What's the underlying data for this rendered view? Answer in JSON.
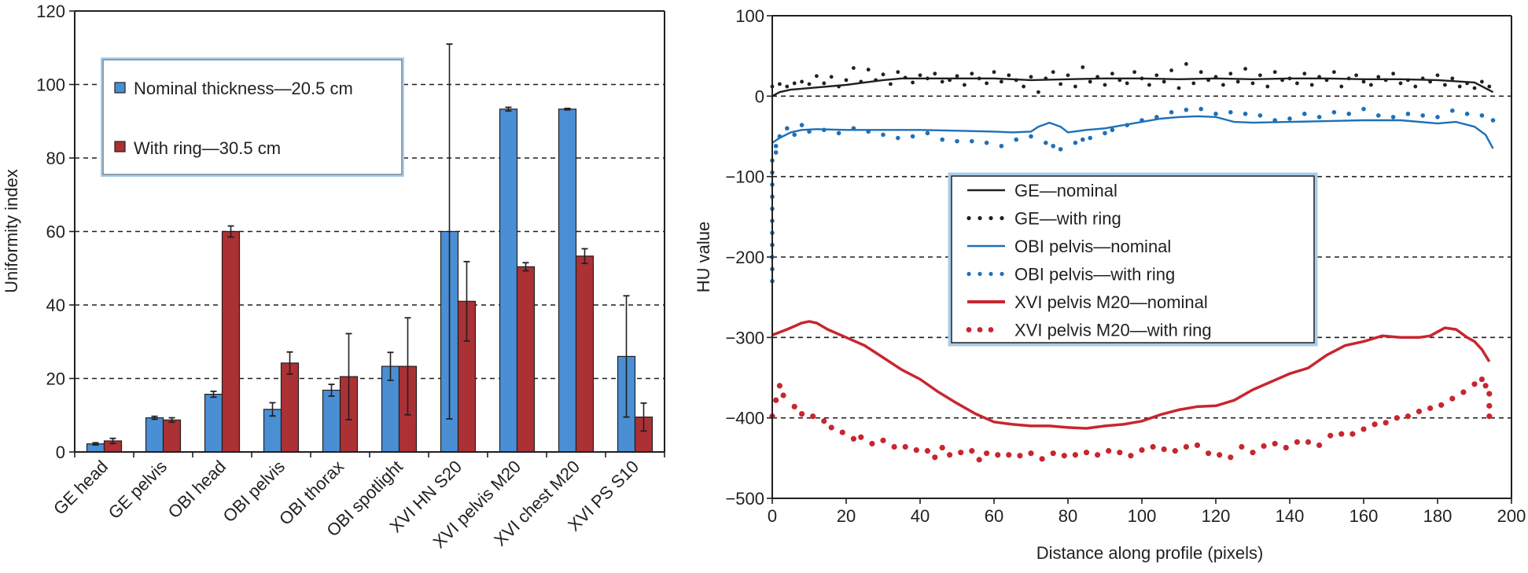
{
  "chart_data": [
    {
      "type": "bar",
      "title": "",
      "xlabel": "",
      "ylabel": "Uniformity index",
      "ylim": [
        0,
        120
      ],
      "yticks": [
        "0",
        "20",
        "40",
        "60",
        "80",
        "100",
        "120"
      ],
      "grid": "dashed horizontal",
      "legend_position": "top-left",
      "categories": [
        "GE head",
        "GE pelvis",
        "OBI head",
        "OBI pelvis",
        "OBI thorax",
        "OBI spotlight",
        "XVI HN S20",
        "XVI pelvis M20",
        "XVI chest M20",
        "XVI PS S10"
      ],
      "series": [
        {
          "name": "Nominal thickness—20.5 cm",
          "color": "#4a8fd4",
          "values": [
            2.2,
            9.3,
            15.7,
            11.6,
            16.8,
            23.3,
            60.0,
            93.3,
            93.3,
            26.0
          ],
          "error": [
            0.3,
            0.4,
            0.8,
            1.8,
            1.6,
            3.8,
            51.0,
            0.5,
            0.2,
            16.5
          ]
        },
        {
          "name": "With ring—30.5 cm",
          "color": "#ab3135",
          "values": [
            3.0,
            8.7,
            60.0,
            24.2,
            20.5,
            23.3,
            41.0,
            50.4,
            53.3,
            9.5
          ],
          "error": [
            0.7,
            0.6,
            1.5,
            3.0,
            11.7,
            13.2,
            10.8,
            1.1,
            2.0,
            3.8
          ]
        }
      ]
    },
    {
      "type": "line",
      "title": "",
      "xlabel": "Distance along profile (pixels)",
      "ylabel": "HU value",
      "xlim": [
        0,
        200
      ],
      "ylim": [
        -500,
        100
      ],
      "xticks": [
        "0",
        "20",
        "40",
        "60",
        "80",
        "100",
        "120",
        "140",
        "160",
        "180",
        "200"
      ],
      "yticks": [
        "−500",
        "−400",
        "−300",
        "−200",
        "−100",
        "0",
        "100"
      ],
      "grid": "dashed horizontal",
      "legend_position": "center",
      "series": [
        {
          "name": "GE—nominal",
          "style": "solid",
          "color": "#231f20",
          "x": [
            0,
            2,
            5,
            10,
            15,
            20,
            25,
            30,
            35,
            40,
            50,
            60,
            70,
            80,
            90,
            100,
            110,
            120,
            130,
            140,
            150,
            160,
            170,
            180,
            190,
            195
          ],
          "y": [
            0,
            5,
            8,
            10,
            12,
            14,
            17,
            20,
            22,
            22,
            22,
            22,
            20,
            21,
            22,
            22,
            21,
            22,
            21,
            22,
            22,
            21,
            21,
            20,
            17,
            5
          ]
        },
        {
          "name": "GE—with ring",
          "style": "dotted",
          "color": "#231f20",
          "x": [
            0,
            2,
            4,
            6,
            8,
            10,
            12,
            14,
            16,
            18,
            20,
            22,
            24,
            26,
            28,
            30,
            32,
            34,
            36,
            38,
            40,
            42,
            44,
            46,
            48,
            50,
            52,
            54,
            56,
            58,
            60,
            62,
            64,
            66,
            68,
            70,
            72,
            74,
            76,
            78,
            80,
            82,
            84,
            86,
            88,
            90,
            92,
            94,
            96,
            98,
            100,
            102,
            104,
            106,
            108,
            110,
            112,
            114,
            116,
            118,
            120,
            122,
            124,
            126,
            128,
            130,
            132,
            134,
            136,
            138,
            140,
            142,
            144,
            146,
            148,
            150,
            152,
            154,
            156,
            158,
            160,
            162,
            164,
            166,
            168,
            170,
            172,
            174,
            176,
            178,
            180,
            182,
            184,
            186,
            188,
            190,
            192,
            194
          ],
          "y": [
            12,
            15,
            12,
            16,
            18,
            15,
            25,
            16,
            24,
            12,
            20,
            35,
            18,
            33,
            20,
            27,
            15,
            30,
            23,
            17,
            26,
            22,
            28,
            18,
            20,
            25,
            14,
            28,
            22,
            16,
            30,
            18,
            26,
            20,
            12,
            24,
            5,
            22,
            30,
            15,
            26,
            12,
            36,
            18,
            24,
            14,
            28,
            20,
            16,
            30,
            22,
            14,
            26,
            18,
            32,
            10,
            40,
            16,
            30,
            20,
            24,
            14,
            28,
            18,
            34,
            16,
            26,
            12,
            30,
            20,
            22,
            16,
            28,
            14,
            24,
            20,
            30,
            12,
            22,
            26,
            18,
            14,
            24,
            20,
            28,
            16,
            20,
            12,
            22,
            18,
            26,
            14,
            22,
            12,
            16,
            10,
            18,
            12
          ]
        },
        {
          "name": "OBI pelvis—nominal",
          "style": "solid",
          "color": "#1f6fb8",
          "x": [
            0,
            2,
            5,
            8,
            12,
            20,
            30,
            40,
            50,
            60,
            65,
            70,
            72,
            75,
            78,
            80,
            85,
            90,
            95,
            100,
            105,
            110,
            115,
            120,
            125,
            130,
            140,
            150,
            160,
            170,
            180,
            185,
            190,
            193,
            195
          ],
          "y": [
            -58,
            -52,
            -45,
            -42,
            -41,
            -42,
            -42,
            -42,
            -43,
            -44,
            -45,
            -44,
            -38,
            -33,
            -38,
            -45,
            -42,
            -40,
            -36,
            -32,
            -28,
            -26,
            -25,
            -26,
            -32,
            -33,
            -32,
            -31,
            -30,
            -30,
            -34,
            -32,
            -38,
            -48,
            -65
          ]
        },
        {
          "name": "OBI pelvis—with ring",
          "style": "dotted",
          "color": "#1f6fb8",
          "x": [
            0,
            0,
            0,
            0,
            0,
            0,
            0,
            0,
            0,
            0,
            0,
            1,
            1,
            2,
            4,
            6,
            8,
            10,
            14,
            18,
            22,
            26,
            30,
            34,
            38,
            42,
            46,
            50,
            54,
            58,
            62,
            66,
            70,
            74,
            76,
            78,
            82,
            84,
            86,
            90,
            92,
            96,
            100,
            104,
            108,
            112,
            116,
            120,
            124,
            128,
            132,
            136,
            140,
            144,
            148,
            152,
            156,
            160,
            164,
            168,
            172,
            176,
            180,
            184,
            188,
            192,
            195
          ],
          "y": [
            -230,
            -215,
            -200,
            -185,
            -170,
            -155,
            -140,
            -125,
            -110,
            -95,
            -80,
            -70,
            -62,
            -50,
            -40,
            -48,
            -36,
            -44,
            -42,
            -46,
            -40,
            -44,
            -48,
            -52,
            -50,
            -46,
            -54,
            -56,
            -56,
            -58,
            -62,
            -54,
            -50,
            -58,
            -62,
            -66,
            -58,
            -54,
            -52,
            -46,
            -42,
            -36,
            -30,
            -26,
            -20,
            -17,
            -16,
            -22,
            -20,
            -22,
            -24,
            -30,
            -28,
            -22,
            -26,
            -20,
            -22,
            -16,
            -24,
            -26,
            -22,
            -24,
            -26,
            -18,
            -22,
            -24,
            -30
          ]
        },
        {
          "name": "XVI pelvis M20—nominal",
          "style": "solid",
          "color": "#c8262f",
          "x": [
            0,
            4,
            8,
            10,
            12,
            15,
            20,
            25,
            30,
            35,
            40,
            45,
            50,
            55,
            60,
            65,
            70,
            75,
            80,
            85,
            90,
            95,
            100,
            105,
            110,
            115,
            120,
            125,
            130,
            135,
            140,
            145,
            150,
            155,
            160,
            165,
            170,
            175,
            178,
            182,
            185,
            188,
            190,
            192,
            194
          ],
          "y": [
            -297,
            -290,
            -282,
            -280,
            -282,
            -290,
            -300,
            -310,
            -325,
            -340,
            -352,
            -368,
            -382,
            -395,
            -405,
            -408,
            -410,
            -410,
            -412,
            -413,
            -410,
            -408,
            -404,
            -396,
            -390,
            -386,
            -385,
            -378,
            -365,
            -355,
            -345,
            -338,
            -322,
            -310,
            -305,
            -298,
            -300,
            -300,
            -298,
            -288,
            -290,
            -300,
            -305,
            -315,
            -330
          ]
        },
        {
          "name": "XVI pelvis M20—with ring",
          "style": "dotted",
          "color": "#c8262f",
          "x": [
            0,
            1,
            2,
            3,
            6,
            8,
            11,
            14,
            16,
            19,
            22,
            24,
            27,
            30,
            33,
            36,
            39,
            42,
            44,
            46,
            48,
            51,
            54,
            56,
            58,
            61,
            64,
            67,
            70,
            73,
            76,
            79,
            82,
            85,
            88,
            91,
            94,
            97,
            100,
            103,
            106,
            109,
            112,
            115,
            118,
            121,
            124,
            127,
            130,
            133,
            136,
            139,
            142,
            145,
            148,
            151,
            154,
            157,
            160,
            163,
            166,
            169,
            172,
            175,
            178,
            181,
            184,
            187,
            190,
            192,
            193,
            194,
            194,
            194
          ],
          "y": [
            -398,
            -378,
            -360,
            -372,
            -386,
            -395,
            -398,
            -404,
            -412,
            -418,
            -426,
            -424,
            -432,
            -428,
            -436,
            -436,
            -440,
            -441,
            -449,
            -437,
            -446,
            -443,
            -441,
            -452,
            -444,
            -446,
            -446,
            -447,
            -444,
            -451,
            -444,
            -447,
            -446,
            -443,
            -446,
            -441,
            -443,
            -447,
            -440,
            -436,
            -439,
            -441,
            -436,
            -434,
            -444,
            -446,
            -449,
            -436,
            -443,
            -435,
            -432,
            -437,
            -430,
            -430,
            -434,
            -422,
            -420,
            -420,
            -414,
            -408,
            -406,
            -400,
            -398,
            -392,
            -388,
            -384,
            -376,
            -368,
            -358,
            -352,
            -360,
            -370,
            -385,
            -398
          ]
        }
      ]
    }
  ]
}
